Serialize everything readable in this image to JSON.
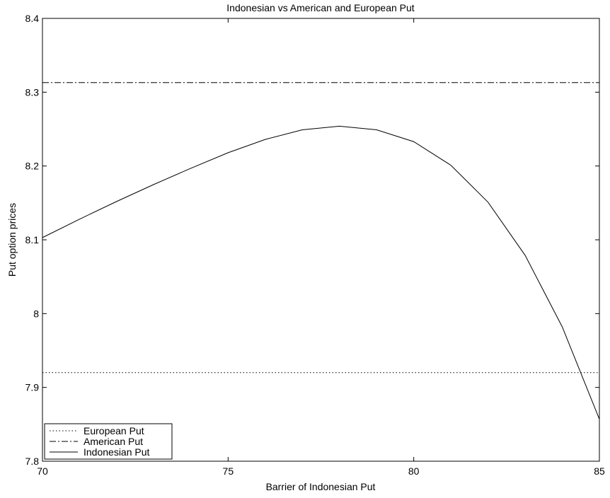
{
  "chart_data": {
    "type": "line",
    "title": "Indonesian vs American and European Put",
    "xlabel": "Barrier of Indonesian Put",
    "ylabel": "Put option prices",
    "xlim": [
      70,
      85
    ],
    "ylim": [
      7.8,
      8.4
    ],
    "x_ticks": [
      70,
      75,
      80,
      85
    ],
    "x_tick_labels": [
      "70",
      "75",
      "80",
      "85"
    ],
    "y_ticks": [
      7.8,
      7.9,
      8.0,
      8.1,
      8.2,
      8.3,
      8.4
    ],
    "y_tick_labels": [
      "7.8",
      "7.9",
      "8",
      "8.1",
      "8.2",
      "8.3",
      "8.4"
    ],
    "grid": false,
    "legend_position": "bottom-left",
    "series": [
      {
        "name": "European Put",
        "line_style": "dotted",
        "color": "#000000",
        "x": [
          70,
          85
        ],
        "y": [
          7.92,
          7.92
        ]
      },
      {
        "name": "American Put",
        "line_style": "dash-dot",
        "color": "#000000",
        "x": [
          70,
          85
        ],
        "y": [
          8.313,
          8.313
        ]
      },
      {
        "name": "Indonesian Put",
        "line_style": "solid",
        "color": "#000000",
        "x": [
          70,
          71,
          72,
          73,
          74,
          75,
          76,
          77,
          78,
          79,
          80,
          81,
          82,
          83,
          84,
          85
        ],
        "y": [
          8.103,
          8.128,
          8.152,
          8.175,
          8.197,
          8.218,
          8.236,
          8.249,
          8.254,
          8.249,
          8.233,
          8.201,
          8.151,
          8.079,
          7.982,
          7.857
        ]
      }
    ]
  }
}
